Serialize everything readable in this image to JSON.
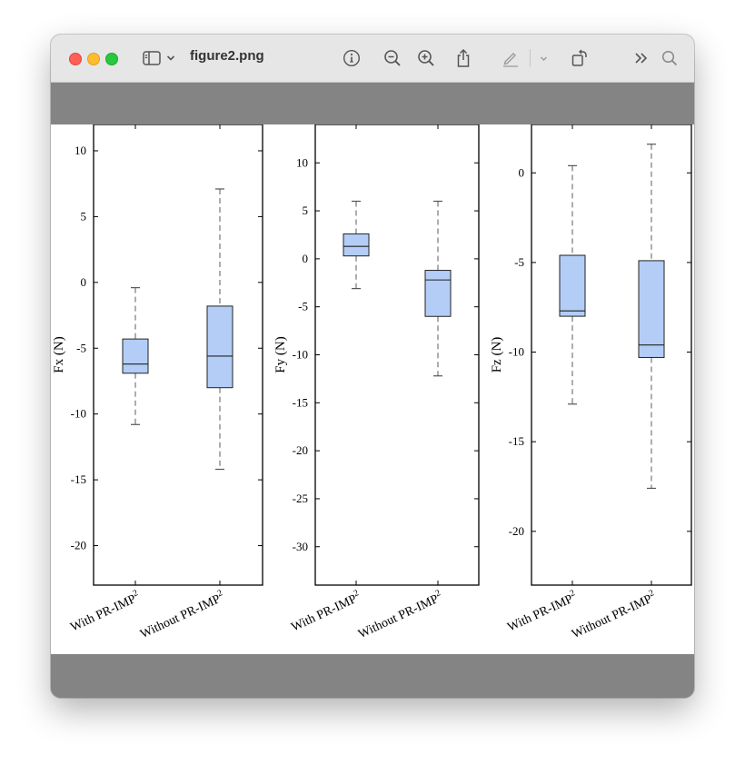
{
  "window": {
    "title": "figure2.png"
  },
  "toolbar": {
    "sidebar_icon": "sidebar-icon",
    "chevron_icon": "chevron-down-icon",
    "info_icon": "info-icon",
    "zoom_out_icon": "zoom-out-icon",
    "zoom_in_icon": "zoom-in-icon",
    "share_icon": "share-icon",
    "markup_icon": "pen-markup-icon",
    "rotate_icon": "rotate-icon",
    "more_icon": "more-icon",
    "search_icon": "search-icon"
  },
  "colors": {
    "box_fill": "#b3cdf7",
    "gray_bg": "#848484"
  },
  "chart_data": [
    {
      "type": "box",
      "ylabel": "Fx (N)",
      "categories": [
        "With PR-IMP",
        "Without PR-IMP"
      ],
      "category_superscript": "2",
      "ylim": [
        -23,
        12
      ],
      "yticks": [
        10,
        5,
        0,
        -5,
        -10,
        -15,
        -20
      ],
      "boxes": [
        {
          "whisker_low": -10.8,
          "q1": -6.9,
          "median": -6.2,
          "q3": -4.3,
          "whisker_high": -0.4
        },
        {
          "whisker_low": -14.2,
          "q1": -8.0,
          "median": -5.6,
          "q3": -1.8,
          "whisker_high": 7.1
        }
      ]
    },
    {
      "type": "box",
      "ylabel": "Fy (N)",
      "categories": [
        "With PR-IMP",
        "Without PR-IMP"
      ],
      "category_superscript": "2",
      "ylim": [
        -34,
        14
      ],
      "yticks": [
        10,
        5,
        0,
        -5,
        -10,
        -15,
        -20,
        -25,
        -30
      ],
      "boxes": [
        {
          "whisker_low": -3.1,
          "q1": 0.3,
          "median": 1.3,
          "q3": 2.6,
          "whisker_high": 6.0
        },
        {
          "whisker_low": -12.2,
          "q1": -6.0,
          "median": -2.2,
          "q3": -1.2,
          "whisker_high": 6.0
        }
      ]
    },
    {
      "type": "box",
      "ylabel": "Fz (N)",
      "categories": [
        "With PR-IMP",
        "Without PR-IMP"
      ],
      "category_superscript": "2",
      "ylim": [
        -23,
        2.7
      ],
      "yticks": [
        0,
        -5,
        -10,
        -15,
        -20
      ],
      "boxes": [
        {
          "whisker_low": -12.9,
          "q1": -8.0,
          "median": -7.7,
          "q3": -4.6,
          "whisker_high": 0.4
        },
        {
          "whisker_low": -17.6,
          "q1": -10.3,
          "median": -9.6,
          "q3": -4.9,
          "whisker_high": 1.6
        }
      ]
    }
  ]
}
